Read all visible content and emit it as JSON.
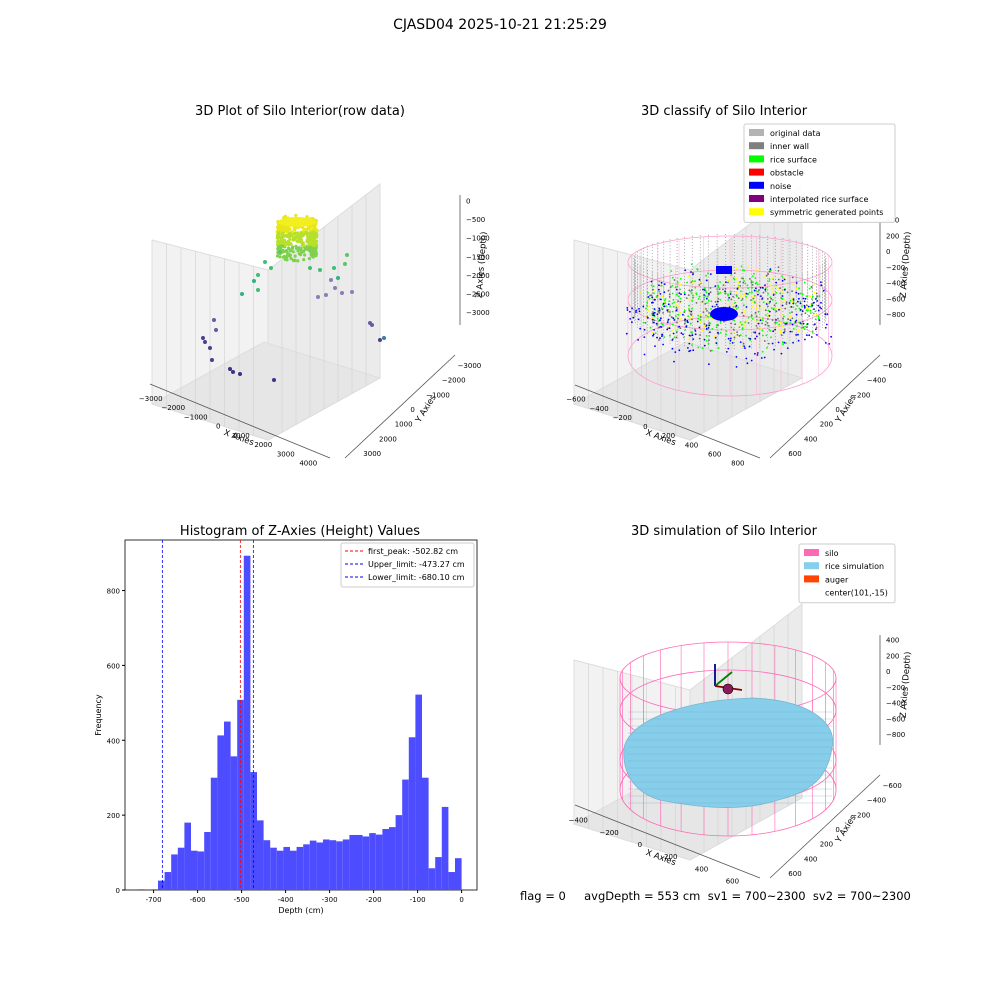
{
  "figure": {
    "suptitle": "CJASD04 2025-10-21 21:25:29",
    "status_line": "flag = 0     avgDepth = 553 cm  sv1 = 700~2300  sv2 = 700~2300"
  },
  "colors": {
    "original_data": "#b3b3b3",
    "inner_wall": "#808080",
    "rice_surface": "#00ff00",
    "obstacle": "#ff0000",
    "noise": "#0000ff",
    "interpolated_rice_surface": "#800080",
    "symmetric_generated_points": "#ffff00",
    "silo": "#ff69b4",
    "rice_simulation": "#87ceeb",
    "auger": "#ff4500",
    "hist_bar": "#4d4dff"
  },
  "chart_data": [
    {
      "type": "scatter",
      "title": "3D Plot of Silo Interior(row data)",
      "xlabel": "X Axies",
      "ylabel": "Y Axies",
      "zlabel": "Z Axies (Depth)",
      "x_ticks": [
        "−3000",
        "−2000",
        "−1000",
        "0",
        "1000",
        "2000",
        "3000",
        "4000"
      ],
      "y_ticks": [
        "3000",
        "2000",
        "1000",
        "0",
        "−1000",
        "−2000",
        "−3000"
      ],
      "z_ticks": [
        "0",
        "−500",
        "−1000",
        "−1500",
        "−2000",
        "−2500",
        "−3000"
      ]
    },
    {
      "type": "scatter",
      "title": "3D classify of Silo Interior",
      "xlabel": "X Axies",
      "ylabel": "Y Axies",
      "zlabel": "Z Axies (Depth)",
      "x_ticks": [
        "−600",
        "−400",
        "−200",
        "0",
        "200",
        "400",
        "600",
        "800"
      ],
      "y_ticks": [
        "600",
        "400",
        "200",
        "0",
        "−200",
        "−400",
        "−600"
      ],
      "z_ticks": [
        "400",
        "200",
        "0",
        "−200",
        "−400",
        "−600",
        "−800"
      ],
      "legend": [
        "original data",
        "inner wall",
        "rice surface",
        "obstacle",
        "noise",
        "interpolated rice surface",
        "symmetric generated points"
      ]
    },
    {
      "type": "bar",
      "title": "Histogram of Z-Axies (Height) Values",
      "xlabel": "Depth (cm)",
      "ylabel": "Frequency",
      "xlim": [
        -765,
        35
      ],
      "ylim": [
        0,
        935
      ],
      "x_ticks": [
        -700,
        -600,
        -500,
        -400,
        -300,
        -200,
        -100,
        0
      ],
      "y_ticks": [
        0,
        200,
        400,
        600,
        800
      ],
      "bin_width": 15,
      "bins_start": [
        -735,
        -720,
        -705,
        -690,
        -675,
        -660,
        -645,
        -630,
        -615,
        -600,
        -585,
        -570,
        -555,
        -540,
        -525,
        -510,
        -495,
        -480,
        -465,
        -450,
        -435,
        -420,
        -405,
        -390,
        -375,
        -360,
        -345,
        -330,
        -315,
        -300,
        -285,
        -270,
        -255,
        -240,
        -225,
        -210,
        -195,
        -180,
        -165,
        -150,
        -135,
        -120,
        -105,
        -90,
        -75,
        -60,
        -45,
        -30,
        -15
      ],
      "values": [
        2,
        0,
        2,
        25,
        48,
        95,
        113,
        180,
        105,
        103,
        155,
        300,
        413,
        450,
        357,
        508,
        893,
        315,
        186,
        133,
        113,
        105,
        115,
        105,
        115,
        122,
        132,
        127,
        135,
        133,
        130,
        135,
        147,
        147,
        143,
        152,
        148,
        163,
        168,
        200,
        295,
        408,
        522,
        300,
        58,
        88,
        222,
        48,
        85
      ],
      "lines": [
        {
          "label": "first_peak: -502.82 cm",
          "x": -502.82,
          "color": "#ff0000"
        },
        {
          "label": "Upper_limit: -473.27 cm",
          "x": -473.27,
          "color": "#0000ff"
        },
        {
          "label": "Lower_limit: -680.10 cm",
          "x": -680.1,
          "color": "#0000ff"
        }
      ]
    },
    {
      "type": "area",
      "title": "3D simulation of Silo Interior",
      "xlabel": "X Axies",
      "ylabel": "Y Axies",
      "zlabel": "Z Axies (Depth)",
      "x_ticks": [
        "−400",
        "−200",
        "0",
        "200",
        "400",
        "600"
      ],
      "y_ticks": [
        "600",
        "400",
        "200",
        "0",
        "−200",
        "−400",
        "−600"
      ],
      "z_ticks": [
        "400",
        "200",
        "0",
        "−200",
        "−400",
        "−600",
        "−800"
      ],
      "legend": [
        "silo",
        "rice simulation",
        "auger",
        "center(101,-15)"
      ]
    }
  ]
}
